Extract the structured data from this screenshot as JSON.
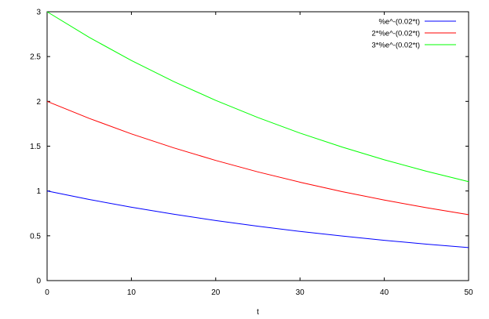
{
  "chart_data": {
    "type": "line",
    "xlabel": "t",
    "ylabel": "",
    "xlim": [
      0,
      50
    ],
    "ylim": [
      0,
      3
    ],
    "xticks": [
      0,
      10,
      20,
      30,
      40,
      50
    ],
    "yticks": [
      0,
      0.5,
      1,
      1.5,
      2,
      2.5,
      3
    ],
    "xtick_labels": [
      "0",
      "10",
      "20",
      "30",
      "40",
      "50"
    ],
    "ytick_labels": [
      "0",
      "0.5",
      "1",
      "1.5",
      "2",
      "2.5",
      "3"
    ],
    "grid": false,
    "legend_position": "top-right",
    "x": [
      0,
      5,
      10,
      15,
      20,
      25,
      30,
      35,
      40,
      45,
      50
    ],
    "series": [
      {
        "name": "%e^-(0.02*t)",
        "color": "#0000ff",
        "values": [
          1.0,
          0.905,
          0.819,
          0.741,
          0.67,
          0.607,
          0.549,
          0.497,
          0.449,
          0.407,
          0.368
        ]
      },
      {
        "name": "2*%e^-(0.02*t)",
        "color": "#ff0000",
        "values": [
          2.0,
          1.81,
          1.637,
          1.482,
          1.341,
          1.213,
          1.098,
          0.993,
          0.899,
          0.813,
          0.736
        ]
      },
      {
        "name": "3*%e^-(0.02*t)",
        "color": "#00ff00",
        "values": [
          3.0,
          2.714,
          2.456,
          2.222,
          2.011,
          1.82,
          1.646,
          1.49,
          1.348,
          1.22,
          1.104
        ]
      }
    ]
  }
}
